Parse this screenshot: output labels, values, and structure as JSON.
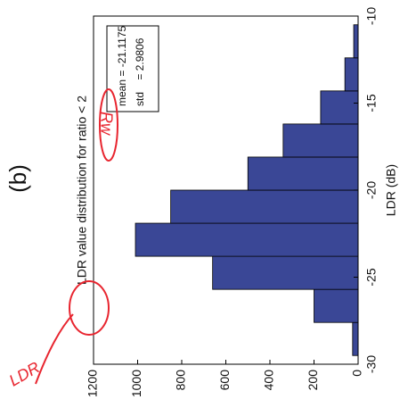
{
  "chart_data": {
    "type": "histogram",
    "label": "(b)",
    "title": "LDR value distribution for ratio < 2",
    "x_label": "LDR (dB)",
    "bins": [
      -29.5,
      -27.6,
      -25.7,
      -23.8,
      -21.9,
      -20.0,
      -18.1,
      -16.2,
      -14.3,
      -12.4,
      -10.5
    ],
    "values": [
      25,
      200,
      660,
      1010,
      850,
      500,
      340,
      170,
      60,
      20
    ],
    "color": "#3a4796",
    "xlim": [
      -30,
      -10
    ],
    "xticks": [
      -30,
      -25,
      -20,
      -15,
      -10
    ],
    "ylim": [
      0,
      1200
    ],
    "yticks": [
      0,
      200,
      400,
      600,
      800,
      1000,
      1200
    ],
    "stats": [
      "mean = -21.1175",
      "std    = 2.9806"
    ],
    "annotations": [
      "Rw",
      "LDR"
    ]
  }
}
